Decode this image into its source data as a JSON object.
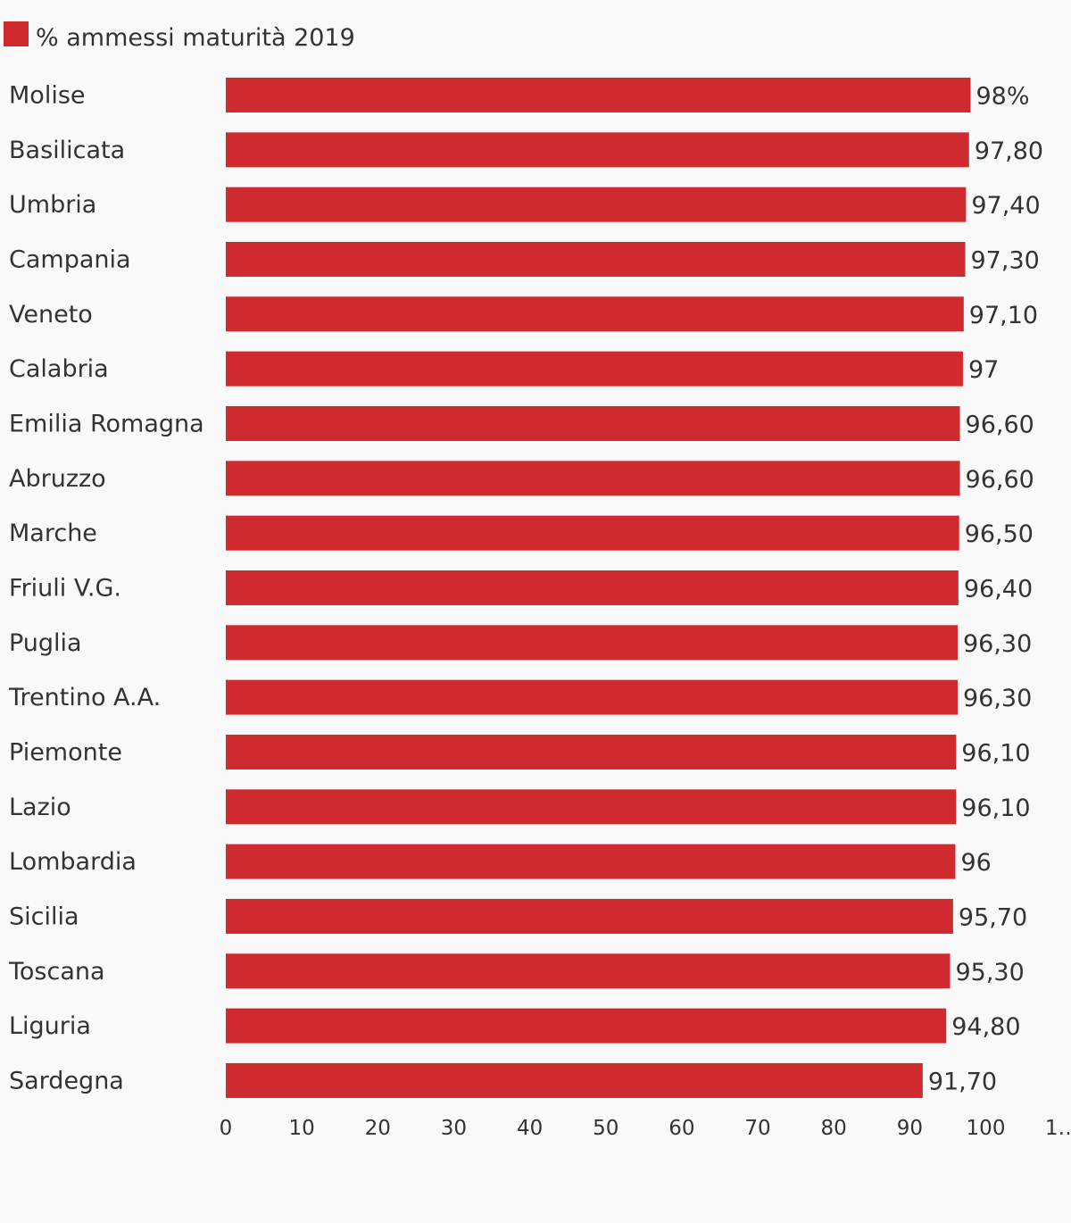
{
  "chart_data": {
    "type": "bar",
    "orientation": "horizontal",
    "legend_position": "top-left",
    "grid": false,
    "series": [
      {
        "name": "% ammessi maturità 2019",
        "color": "#cf2a2f",
        "values": [
          98,
          97.8,
          97.4,
          97.3,
          97.1,
          97,
          96.6,
          96.6,
          96.5,
          96.4,
          96.3,
          96.3,
          96.1,
          96.1,
          96,
          95.7,
          95.3,
          94.8,
          91.7
        ]
      }
    ],
    "categories": [
      "Molise",
      "Basilicata",
      "Umbria",
      "Campania",
      "Veneto",
      "Calabria",
      "Emilia Romagna",
      "Abruzzo",
      "Marche",
      "Friuli V.G.",
      "Puglia",
      "Trentino A.A.",
      "Piemonte",
      "Lazio",
      "Lombardia",
      "Sicilia",
      "Toscana",
      "Liguria",
      "Sardegna"
    ],
    "value_labels": [
      "98%",
      "97,80",
      "97,40",
      "97,30",
      "97,10",
      "97",
      "96,60",
      "96,60",
      "96,50",
      "96,40",
      "96,30",
      "96,30",
      "96,10",
      "96,10",
      "96",
      "95,70",
      "95,30",
      "94,80",
      "91,70"
    ],
    "xlim": [
      0,
      110
    ],
    "x_ticks": [
      "0",
      "10",
      "20",
      "30",
      "40",
      "50",
      "60",
      "70",
      "80",
      "90",
      "100",
      "1…"
    ]
  }
}
